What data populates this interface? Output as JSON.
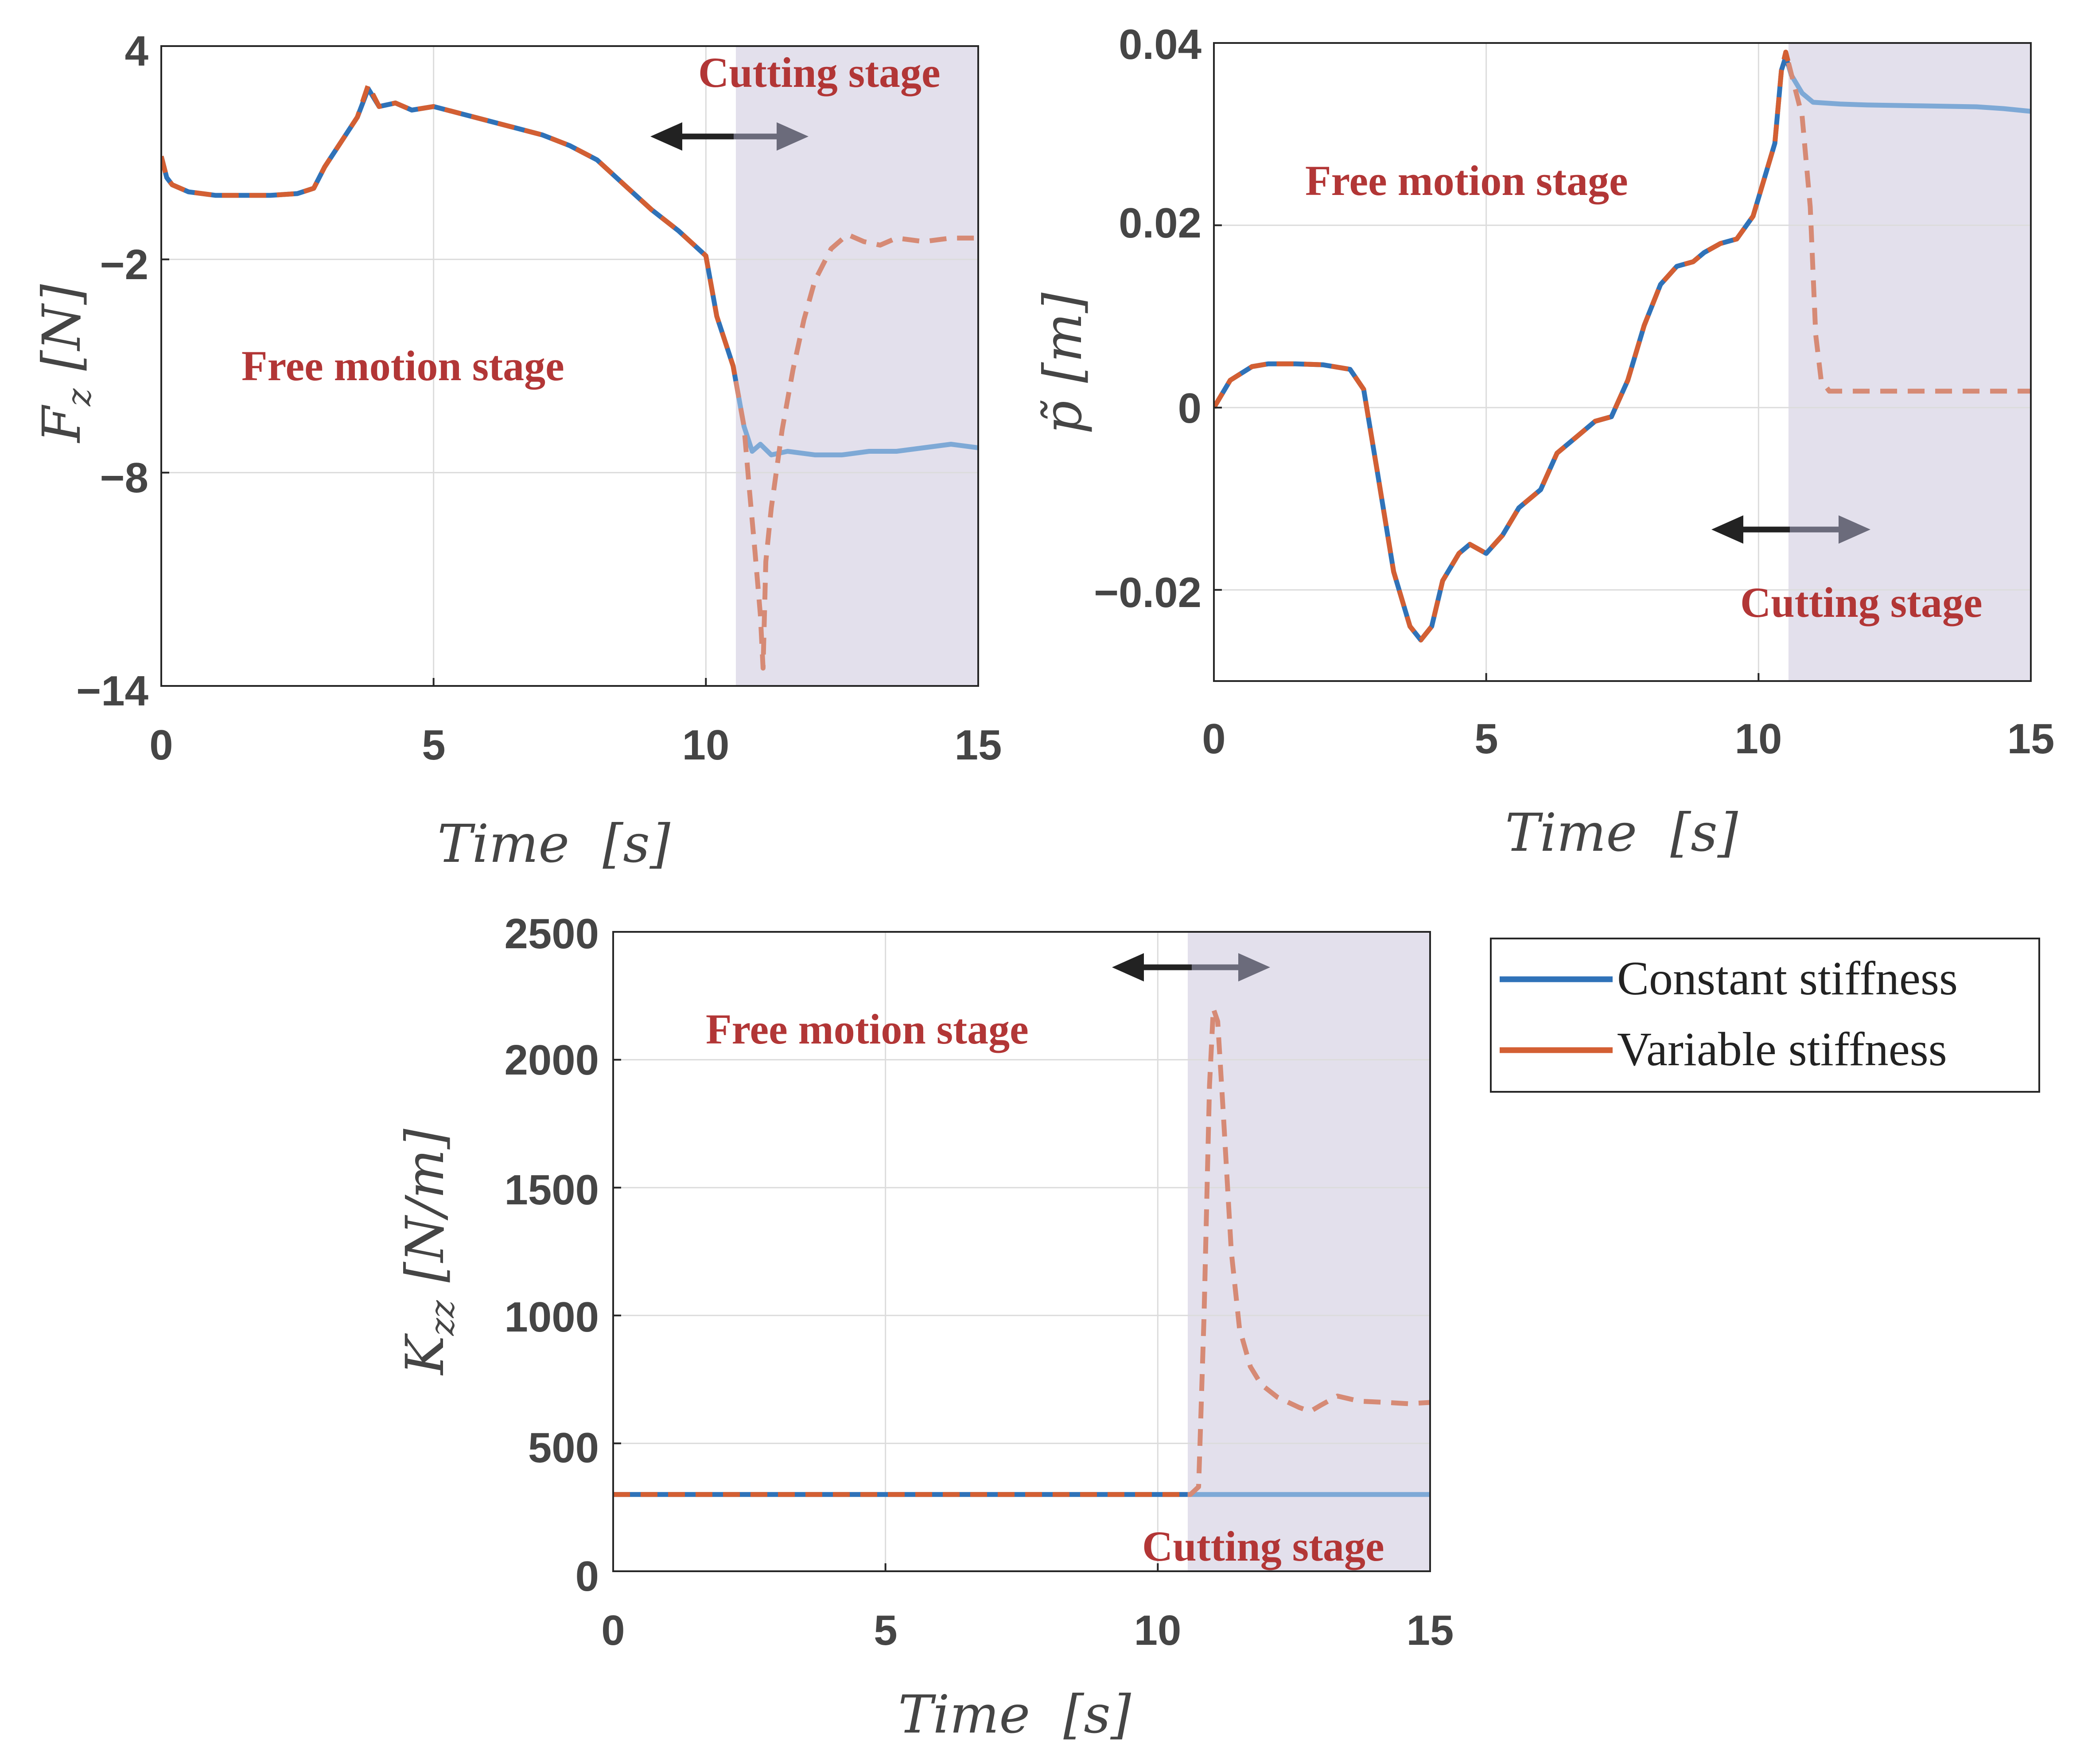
{
  "colors": {
    "constant": "#2f72b8",
    "variable": "#d35f33",
    "shade": "#e3e0ec",
    "annotation": "#b23636",
    "arrow_dark": "#222222",
    "arrow_light": "#6b6b7b"
  },
  "chart_data": [
    {
      "id": "fz",
      "type": "line",
      "xlabel": "Time  [s]",
      "ylabel": "F_z  [N]",
      "ylabel_main": "F",
      "ylabel_sub": "z",
      "ylabel_unit": "[N]",
      "xlim": [
        0,
        15
      ],
      "ylim": [
        -14,
        4
      ],
      "xticks": [
        0,
        5,
        10,
        15
      ],
      "xtick_labels": [
        "0",
        "5",
        "10",
        "15"
      ],
      "yticks": [
        -14,
        -8,
        -2,
        4
      ],
      "ytick_labels": [
        "−14",
        "−8",
        "−2",
        "4"
      ],
      "grid": true,
      "shade_from": 10.55,
      "annotations": {
        "free": "Free motion stage",
        "cutting": "Cutting stage"
      },
      "series": [
        {
          "name": "Constant stiffness",
          "x": [
            0,
            0.1,
            0.2,
            0.5,
            1,
            1.5,
            2,
            2.5,
            2.8,
            3,
            3.3,
            3.6,
            3.8,
            4,
            4.3,
            4.6,
            5,
            5.5,
            6,
            6.5,
            7,
            7.5,
            8,
            8.5,
            9,
            9.5,
            10,
            10.2,
            10.35,
            10.5,
            10.7,
            10.85,
            11,
            11.2,
            11.5,
            12,
            12.5,
            13,
            13.5,
            14,
            14.5,
            15
          ],
          "y": [
            0.9,
            0.3,
            0.1,
            -0.1,
            -0.2,
            -0.2,
            -0.2,
            -0.15,
            0,
            0.6,
            1.3,
            2.0,
            2.8,
            2.3,
            2.4,
            2.2,
            2.3,
            2.1,
            1.9,
            1.7,
            1.5,
            1.2,
            0.8,
            0.1,
            -0.6,
            -1.2,
            -1.9,
            -3.6,
            -4.3,
            -5.0,
            -6.7,
            -7.4,
            -7.2,
            -7.5,
            -7.4,
            -7.5,
            -7.5,
            -7.4,
            -7.4,
            -7.3,
            -7.2,
            -7.3
          ]
        },
        {
          "name": "Variable stiffness",
          "x": [
            0,
            0.1,
            0.2,
            0.5,
            1,
            1.5,
            2,
            2.5,
            2.8,
            3,
            3.3,
            3.6,
            3.8,
            4,
            4.3,
            4.6,
            5,
            5.5,
            6,
            6.5,
            7,
            7.5,
            8,
            8.5,
            9,
            9.5,
            10,
            10.2,
            10.35,
            10.5,
            10.7,
            10.8,
            10.9,
            11.0,
            11.05,
            11.1,
            11.2,
            11.4,
            11.6,
            11.8,
            12,
            12.3,
            12.6,
            12.9,
            13.2,
            13.5,
            14,
            14.5,
            15
          ],
          "y": [
            0.9,
            0.3,
            0.1,
            -0.1,
            -0.2,
            -0.2,
            -0.2,
            -0.15,
            0,
            0.6,
            1.3,
            2.0,
            2.9,
            2.3,
            2.4,
            2.2,
            2.3,
            2.1,
            1.9,
            1.7,
            1.5,
            1.2,
            0.8,
            0.1,
            -0.6,
            -1.2,
            -1.9,
            -3.6,
            -4.3,
            -5.0,
            -6.7,
            -8.5,
            -10.2,
            -12.0,
            -13.5,
            -10.5,
            -9.0,
            -6.8,
            -5.1,
            -3.7,
            -2.6,
            -1.7,
            -1.3,
            -1.5,
            -1.6,
            -1.4,
            -1.5,
            -1.4,
            -1.4
          ]
        }
      ]
    },
    {
      "id": "p",
      "type": "line",
      "xlabel": "Time  [s]",
      "ylabel": "p̃  [m]",
      "ylabel_main": "p̃",
      "ylabel_sub": "",
      "ylabel_unit": "[m]",
      "xlim": [
        0,
        15
      ],
      "ylim": [
        -0.03,
        0.04
      ],
      "xticks": [
        0,
        5,
        10,
        15
      ],
      "xtick_labels": [
        "0",
        "5",
        "10",
        "15"
      ],
      "yticks": [
        -0.02,
        0,
        0.02,
        0.04
      ],
      "ytick_labels": [
        "−0.02",
        "0",
        "0.02",
        "0.04"
      ],
      "grid": true,
      "shade_from": 10.55,
      "annotations": {
        "free": "Free motion stage",
        "cutting": "Cutting stage"
      },
      "series": [
        {
          "name": "Constant stiffness",
          "x": [
            0,
            0.3,
            0.7,
            1.0,
            1.5,
            2.0,
            2.5,
            2.75,
            3.0,
            3.3,
            3.6,
            3.8,
            4.0,
            4.2,
            4.5,
            4.7,
            5.0,
            5.3,
            5.6,
            6.0,
            6.3,
            6.6,
            7.0,
            7.3,
            7.6,
            7.9,
            8.2,
            8.5,
            8.8,
            9.0,
            9.3,
            9.6,
            9.9,
            10.1,
            10.3,
            10.42,
            10.5,
            10.6,
            10.8,
            11.0,
            11.5,
            12,
            13,
            14,
            14.5,
            15
          ],
          "y": [
            0,
            0.003,
            0.0045,
            0.0048,
            0.0048,
            0.0047,
            0.0042,
            0.002,
            -0.007,
            -0.018,
            -0.024,
            -0.0255,
            -0.024,
            -0.019,
            -0.016,
            -0.015,
            -0.016,
            -0.014,
            -0.011,
            -0.009,
            -0.005,
            -0.0035,
            -0.0015,
            -0.001,
            0.003,
            0.009,
            0.0135,
            0.0155,
            0.016,
            0.017,
            0.018,
            0.0185,
            0.021,
            0.025,
            0.029,
            0.037,
            0.0385,
            0.0365,
            0.0345,
            0.0335,
            0.0333,
            0.0332,
            0.0331,
            0.033,
            0.0328,
            0.0325
          ]
        },
        {
          "name": "Variable stiffness",
          "x": [
            0,
            0.3,
            0.7,
            1.0,
            1.5,
            2.0,
            2.5,
            2.75,
            3.0,
            3.3,
            3.6,
            3.8,
            4.0,
            4.2,
            4.5,
            4.7,
            5.0,
            5.3,
            5.6,
            6.0,
            6.3,
            6.6,
            7.0,
            7.3,
            7.6,
            7.9,
            8.2,
            8.5,
            8.8,
            9.0,
            9.3,
            9.6,
            9.9,
            10.1,
            10.3,
            10.42,
            10.5,
            10.65,
            10.8,
            10.95,
            11.05,
            11.15,
            11.3,
            11.6,
            12,
            13,
            14,
            15
          ],
          "y": [
            0,
            0.003,
            0.0045,
            0.0048,
            0.0048,
            0.0047,
            0.0042,
            0.002,
            -0.007,
            -0.018,
            -0.024,
            -0.0255,
            -0.024,
            -0.019,
            -0.016,
            -0.015,
            -0.016,
            -0.014,
            -0.011,
            -0.009,
            -0.005,
            -0.0035,
            -0.0015,
            -0.001,
            0.003,
            0.009,
            0.0135,
            0.0155,
            0.016,
            0.017,
            0.018,
            0.0185,
            0.021,
            0.025,
            0.029,
            0.037,
            0.039,
            0.0355,
            0.032,
            0.022,
            0.008,
            0.003,
            0.0018,
            0.0018,
            0.0018,
            0.0018,
            0.0018,
            0.0018
          ]
        }
      ]
    },
    {
      "id": "k",
      "type": "line",
      "xlabel": "Time  [s]",
      "ylabel": "K_zz  [N/m]",
      "ylabel_main": "K",
      "ylabel_sub": "zz",
      "ylabel_unit": "[N/m]",
      "xlim": [
        0,
        15
      ],
      "ylim": [
        0,
        2500
      ],
      "xticks": [
        0,
        5,
        10,
        15
      ],
      "xtick_labels": [
        "0",
        "5",
        "10",
        "15"
      ],
      "yticks": [
        0,
        500,
        1000,
        1500,
        2000,
        2500
      ],
      "ytick_labels": [
        "0",
        "500",
        "1000",
        "1500",
        "2000",
        "2500"
      ],
      "grid": true,
      "shade_from": 10.55,
      "annotations": {
        "free": "Free motion stage",
        "cutting": "Cutting stage"
      },
      "series": [
        {
          "name": "Constant stiffness",
          "x": [
            0,
            15
          ],
          "y": [
            300,
            300
          ]
        },
        {
          "name": "Variable stiffness",
          "x": [
            0,
            10.6,
            10.75,
            10.85,
            10.95,
            11.02,
            11.1,
            11.2,
            11.35,
            11.5,
            11.7,
            11.9,
            12.2,
            12.6,
            12.8,
            13.0,
            13.3,
            13.7,
            14.2,
            14.6,
            15
          ],
          "y": [
            300,
            300,
            330,
            1000,
            1900,
            2200,
            2150,
            1800,
            1250,
            950,
            800,
            730,
            680,
            640,
            625,
            650,
            685,
            665,
            660,
            655,
            660
          ]
        }
      ]
    }
  ],
  "legend": {
    "items": [
      "Constant stiffness",
      "Variable stiffness"
    ]
  }
}
